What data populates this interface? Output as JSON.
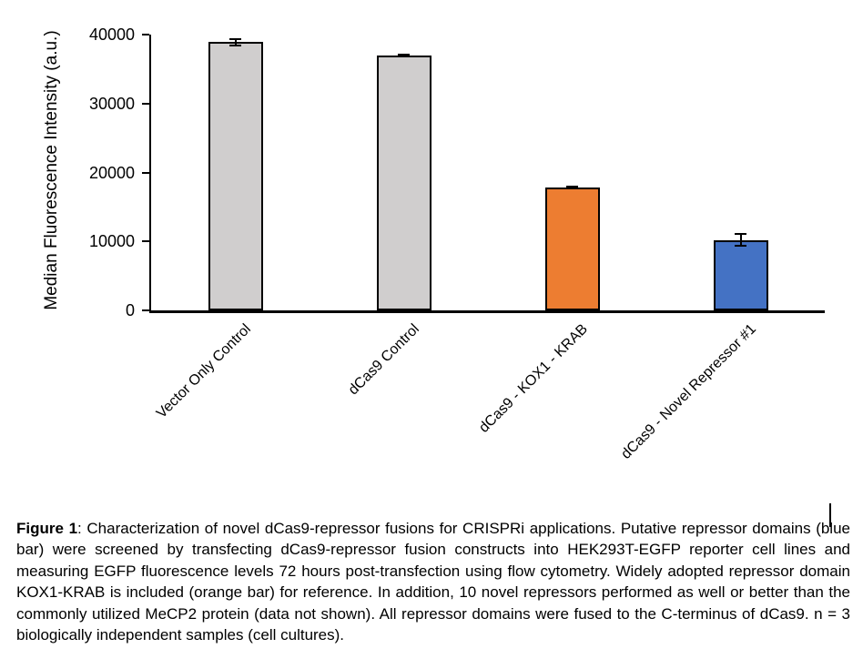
{
  "chart_data": {
    "type": "bar",
    "title": "",
    "categories": [
      "Vector Only Control",
      "dCas9 Control",
      "dCas9 - KOX1 - KRAB",
      "dCas9 - Novel Repressor #1"
    ],
    "values": [
      38900,
      37000,
      17800,
      10200
    ],
    "error_values": [
      600,
      250,
      250,
      1000
    ],
    "bar_colors": [
      "#D0CECE",
      "#D0CECE",
      "#ED7D31",
      "#4472C4"
    ],
    "bar_outline_color": "#000000",
    "xlabel": "",
    "ylabel": "Median Fluorescence Intensity (a.u.)",
    "ylim": [
      0,
      40000
    ],
    "yticks": [
      0,
      10000,
      20000,
      30000,
      40000
    ],
    "ytick_labels": [
      "0",
      "10000",
      "20000",
      "30000",
      "40000"
    ],
    "grid": false,
    "legend": "none",
    "error_bars": true,
    "category_label_rotation_deg": 45
  },
  "caption": {
    "figure_label": "Figure 1",
    "separator": ": ",
    "body": "Characterization of novel dCas9-repressor fusions for CRISPRi applications. Putative repressor domains (blue bar) were screened by transfecting dCas9-repressor fusion constructs into HEK293T-EGFP reporter cell lines and measuring EGFP fluorescence levels 72 hours post-transfection using flow cytometry. Widely adopted repressor domain KOX1-KRAB is included (orange bar) for reference. In addition, 10 novel repressors performed as well or better than the commonly utilized MeCP2 protein (data not shown). All repressor domains were fused to the C-terminus of dCas9. n = 3 biologically independent samples (cell cultures)."
  }
}
